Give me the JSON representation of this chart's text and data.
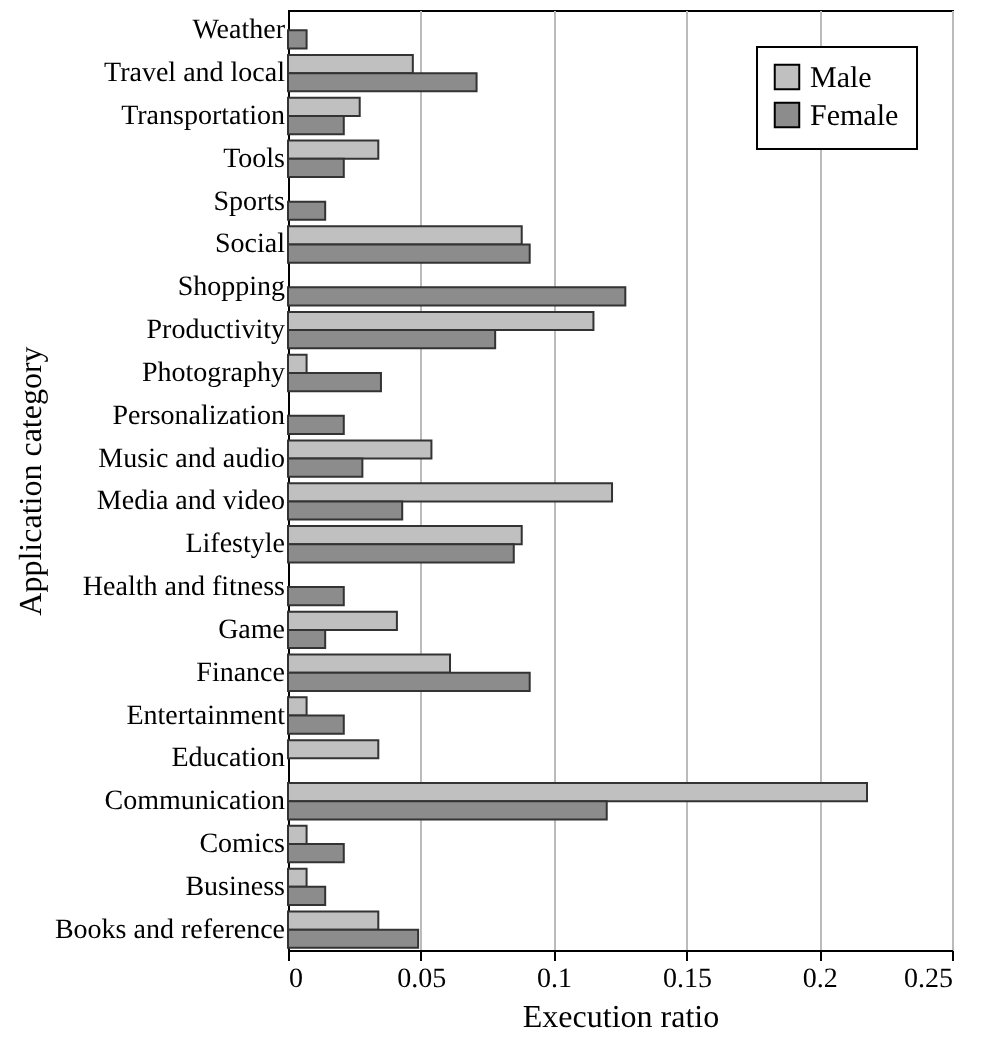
{
  "chart_data": {
    "type": "bar",
    "orientation": "horizontal",
    "xlabel": "Execution ratio",
    "ylabel": "Application category",
    "categories": [
      "Weather",
      "Travel and local",
      "Transportation",
      "Tools",
      "Sports",
      "Social",
      "Shopping",
      "Productivity",
      "Photography",
      "Personalization",
      "Music and audio",
      "Media and video",
      "Lifestyle",
      "Health and fitness",
      "Game",
      "Finance",
      "Entertainment",
      "Education",
      "Communication",
      "Comics",
      "Business",
      "Books and reference"
    ],
    "series": [
      {
        "name": "Male",
        "color": "#c0c0c0",
        "values": [
          null,
          0.047,
          0.027,
          0.034,
          null,
          0.088,
          null,
          0.115,
          0.007,
          null,
          0.054,
          0.122,
          0.088,
          null,
          0.041,
          0.061,
          0.007,
          0.034,
          0.218,
          0.007,
          0.007,
          0.034
        ]
      },
      {
        "name": "Female",
        "color": "#8c8c8c",
        "values": [
          0.007,
          0.071,
          0.021,
          0.021,
          0.014,
          0.091,
          0.127,
          0.078,
          0.035,
          0.021,
          0.028,
          0.043,
          0.085,
          0.021,
          0.014,
          0.091,
          0.021,
          null,
          0.12,
          0.021,
          0.014,
          0.049
        ]
      }
    ],
    "xlim": [
      0,
      0.25
    ],
    "xticks": [
      0,
      0.05,
      0.1,
      0.15,
      0.2,
      0.25
    ],
    "grid": "x",
    "legend": "top right"
  }
}
